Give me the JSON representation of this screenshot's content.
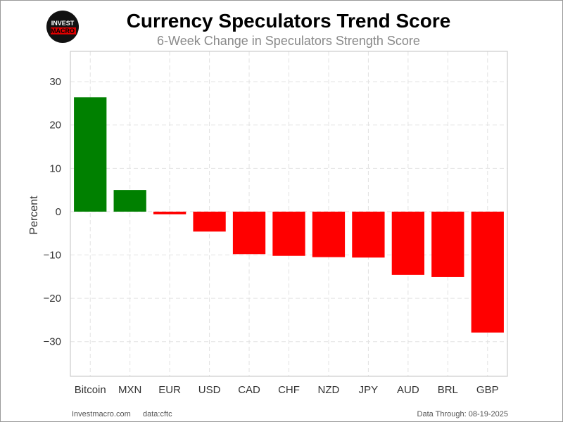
{
  "chart_data": {
    "type": "bar",
    "title": "Currency Speculators Trend Score",
    "subtitle": "6-Week Change in Speculators Strength Score",
    "xlabel": "",
    "ylabel": "Percent",
    "ylim": [
      -38,
      37
    ],
    "yticks": [
      30,
      20,
      10,
      0,
      -10,
      -20,
      -30
    ],
    "ytick_labels": [
      "30",
      "20",
      "10",
      "0",
      "−10",
      "−20",
      "−30"
    ],
    "grid": true,
    "categories": [
      "Bitcoin",
      "MXN",
      "EUR",
      "USD",
      "CAD",
      "CHF",
      "NZD",
      "JPY",
      "AUD",
      "BRL",
      "GBP"
    ],
    "values": [
      26.4,
      5.0,
      -0.6,
      -4.6,
      -9.8,
      -10.2,
      -10.5,
      -10.6,
      -14.6,
      -15.1,
      -27.9
    ],
    "colors": {
      "positive": "#008000",
      "negative": "#ff0000"
    }
  },
  "logo": {
    "line1": "INVEST",
    "line2": "MACRO"
  },
  "footer": {
    "site": "Investmacro.com",
    "source": "data:cftc",
    "date": "Data Through: 08-19-2025"
  }
}
